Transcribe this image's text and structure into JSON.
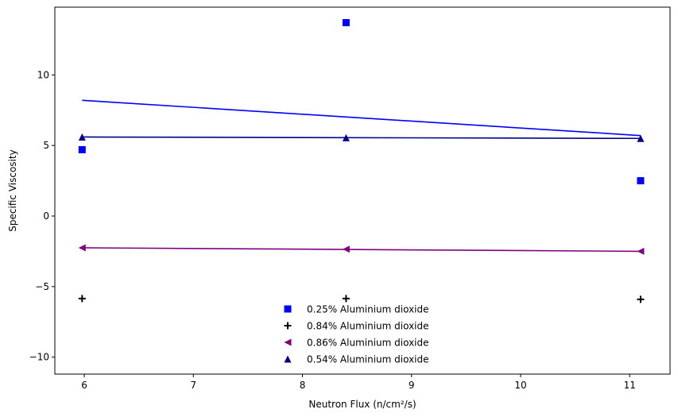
{
  "chart_data": {
    "type": "scatter",
    "title": "",
    "xlabel": "Neutron Flux (n/cm²/s)",
    "ylabel": "Specific Viscosity",
    "xlim": [
      5.73,
      11.37
    ],
    "ylim": [
      -11.2,
      14.8
    ],
    "xticks": [
      6,
      7,
      8,
      9,
      10,
      11
    ],
    "yticks": [
      -10,
      -5,
      0,
      5,
      10
    ],
    "grid": false,
    "legend_position": "lower-center",
    "series": [
      {
        "name": "0.25% Aluminium dioxide",
        "marker": "square",
        "color": "#0000ff",
        "x": [
          5.98,
          8.4,
          11.1
        ],
        "y": [
          4.7,
          13.7,
          2.5
        ],
        "fit": {
          "x": [
            5.98,
            11.1
          ],
          "y": [
            8.2,
            5.7
          ]
        }
      },
      {
        "name": "0.84% Aluminium dioxide",
        "marker": "plus",
        "color": "#000000",
        "x": [
          5.98,
          8.4,
          11.1
        ],
        "y": [
          -5.85,
          -5.85,
          -5.9
        ],
        "fit": null
      },
      {
        "name": "0.86% Aluminium dioxide",
        "marker": "triangle-left",
        "color": "#800080",
        "x": [
          5.98,
          8.4,
          11.1
        ],
        "y": [
          -2.25,
          -2.35,
          -2.5
        ],
        "fit": {
          "x": [
            5.98,
            11.1
          ],
          "y": [
            -2.25,
            -2.5
          ]
        }
      },
      {
        "name": "0.54% Aluminium dioxide",
        "marker": "triangle-up",
        "color": "#00008b",
        "x": [
          5.98,
          8.4,
          11.1
        ],
        "y": [
          5.6,
          5.55,
          5.5
        ],
        "fit": {
          "x": [
            5.98,
            11.1
          ],
          "y": [
            5.6,
            5.5
          ]
        }
      }
    ]
  }
}
